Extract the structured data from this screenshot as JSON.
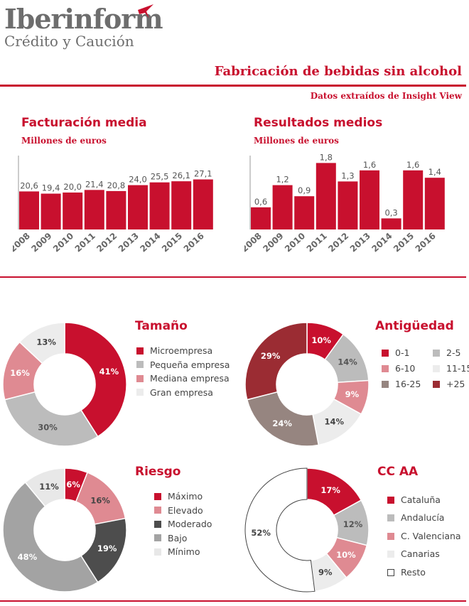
{
  "brand": {
    "name": "Iberinform",
    "tagline": "Crédito y Caución"
  },
  "header": {
    "title": "Fabricación de bebidas sin alcohol",
    "source": "Datos extraídos de Insight View"
  },
  "colors": {
    "accent": "#c8102e",
    "grey_text": "#6d6d6d"
  },
  "chart_data": [
    {
      "id": "facturacion",
      "type": "bar",
      "title": "Facturación media",
      "ylabel": "Millones de euros",
      "categories": [
        "2008",
        "2009",
        "2010",
        "2011",
        "2012",
        "2013",
        "2014",
        "2015",
        "2016"
      ],
      "values": [
        20.6,
        19.4,
        20.0,
        21.4,
        20.8,
        24.0,
        25.5,
        26.1,
        27.1
      ],
      "labels": [
        "20,6",
        "19,4",
        "20,0",
        "21,4",
        "20,8",
        "24,0",
        "25,5",
        "26,1",
        "27,1"
      ],
      "ylim": [
        0,
        40
      ],
      "color": "#c8102e"
    },
    {
      "id": "resultados",
      "type": "bar",
      "title": "Resultados medios",
      "ylabel": "Millones de euros",
      "categories": [
        "2008",
        "2009",
        "2010",
        "2011",
        "2012",
        "2013",
        "2014",
        "2015",
        "2016"
      ],
      "values": [
        0.6,
        1.2,
        0.9,
        1.8,
        1.3,
        1.6,
        0.3,
        1.6,
        1.4
      ],
      "labels": [
        "0,6",
        "1,2",
        "0,9",
        "1,8",
        "1,3",
        "1,6",
        "0,3",
        "1,6",
        "1,4"
      ],
      "ylim": [
        0,
        2.0
      ],
      "color": "#c8102e"
    },
    {
      "id": "tamano",
      "type": "pie",
      "title": "Tamaño",
      "slices": [
        {
          "label": "Microempresa",
          "value": 41,
          "display": "41%",
          "color": "#c8102e",
          "text": "#ffffff"
        },
        {
          "label": "Pequeña empresa",
          "value": 30,
          "display": "30%",
          "color": "#bcbcbc",
          "text": "#555555"
        },
        {
          "label": "Mediana empresa",
          "value": 16,
          "display": "16%",
          "color": "#df8a92",
          "text": "#ffffff"
        },
        {
          "label": "Gran empresa",
          "value": 13,
          "display": "13%",
          "color": "#ececec",
          "text": "#444444"
        }
      ]
    },
    {
      "id": "antiguedad",
      "type": "pie",
      "title": "Antigüedad",
      "slices": [
        {
          "label": "0-1",
          "value": 10,
          "display": "10%",
          "color": "#c8102e",
          "text": "#ffffff"
        },
        {
          "label": "2-5",
          "value": 14,
          "display": "14%",
          "color": "#bcbcbc",
          "text": "#555555"
        },
        {
          "label": "6-10",
          "value": 9,
          "display": "9%",
          "color": "#df8a92",
          "text": "#ffffff"
        },
        {
          "label": "11-15",
          "value": 14,
          "display": "14%",
          "color": "#ececec",
          "text": "#444444"
        },
        {
          "label": "16-25",
          "value": 24,
          "display": "24%",
          "color": "#968580",
          "text": "#ffffff"
        },
        {
          "label": "+25",
          "value": 29,
          "display": "29%",
          "color": "#9b2c33",
          "text": "#ffffff"
        }
      ]
    },
    {
      "id": "riesgo",
      "type": "pie",
      "title": "Riesgo",
      "slices": [
        {
          "label": "Máximo",
          "value": 6,
          "display": "6%",
          "color": "#c8102e",
          "text": "#ffffff"
        },
        {
          "label": "Elevado",
          "value": 16,
          "display": "16%",
          "color": "#df8a92",
          "text": "#444444"
        },
        {
          "label": "Moderado",
          "value": 19,
          "display": "19%",
          "color": "#4d4d4d",
          "text": "#ffffff"
        },
        {
          "label": "Bajo",
          "value": 48,
          "display": "48%",
          "color": "#a3a3a3",
          "text": "#ffffff"
        },
        {
          "label": "Mínimo",
          "value": 11,
          "display": "11%",
          "color": "#e8e8e8",
          "text": "#444444"
        }
      ]
    },
    {
      "id": "ccaa",
      "type": "pie",
      "title": "CC AA",
      "slices": [
        {
          "label": "Cataluña",
          "value": 17,
          "display": "17%",
          "color": "#c8102e",
          "text": "#ffffff"
        },
        {
          "label": "Andalucía",
          "value": 12,
          "display": "12%",
          "color": "#bcbcbc",
          "text": "#555555"
        },
        {
          "label": "C. Valenciana",
          "value": 10,
          "display": "10%",
          "color": "#df8a92",
          "text": "#ffffff"
        },
        {
          "label": "Canarias",
          "value": 9,
          "display": "9%",
          "color": "#ececec",
          "text": "#444444"
        },
        {
          "label": "Resto",
          "value": 52,
          "display": "52%",
          "color": "#ffffff",
          "text": "#444444"
        }
      ]
    }
  ]
}
